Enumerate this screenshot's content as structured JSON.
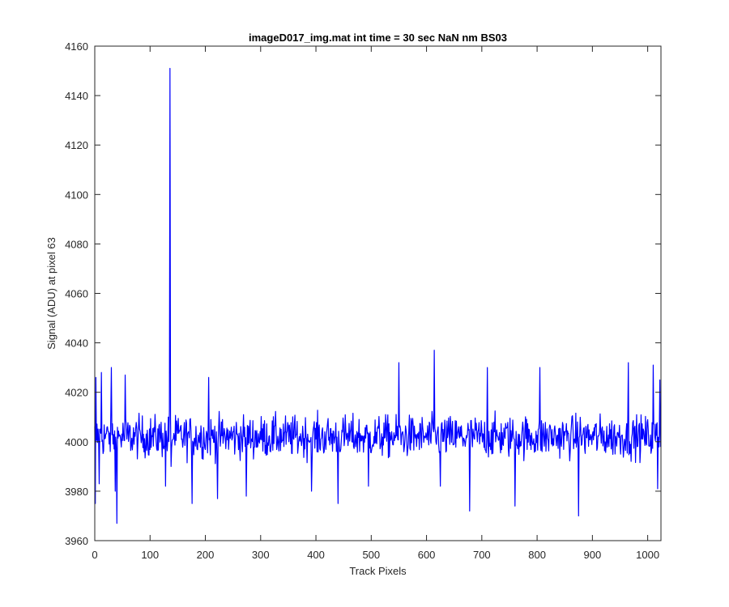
{
  "chart_data": {
    "type": "line",
    "title": "imageD017_img.mat int time = 30 sec  NaN nm BS03",
    "xlabel": "Track Pixels",
    "ylabel": "Signal (ADU) at pixel 63",
    "xlim": [
      0,
      1024
    ],
    "ylim": [
      3960,
      4160
    ],
    "xticks": [
      0,
      100,
      200,
      300,
      400,
      500,
      600,
      700,
      800,
      900,
      1000
    ],
    "yticks": [
      3960,
      3980,
      4000,
      4020,
      4040,
      4060,
      4080,
      4100,
      4120,
      4140,
      4160
    ],
    "grid": false,
    "legend": "none",
    "series": [
      {
        "color": "#0000ff",
        "noise": {
          "n_points": 1024,
          "mean": 4002,
          "spread": 9
        },
        "features": [
          {
            "x": 1,
            "y": 3975
          },
          {
            "x": 2,
            "y": 4026
          },
          {
            "x": 8,
            "y": 3983
          },
          {
            "x": 12,
            "y": 4028
          },
          {
            "x": 30,
            "y": 4030
          },
          {
            "x": 37,
            "y": 3980
          },
          {
            "x": 40,
            "y": 3967
          },
          {
            "x": 55,
            "y": 4027
          },
          {
            "x": 128,
            "y": 3982
          },
          {
            "x": 135,
            "y": 4013
          },
          {
            "x": 136,
            "y": 4151
          },
          {
            "x": 137,
            "y": 4010
          },
          {
            "x": 138,
            "y": 3990
          },
          {
            "x": 176,
            "y": 3975
          },
          {
            "x": 206,
            "y": 4026
          },
          {
            "x": 222,
            "y": 3977
          },
          {
            "x": 274,
            "y": 3978
          },
          {
            "x": 392,
            "y": 3980
          },
          {
            "x": 440,
            "y": 3975
          },
          {
            "x": 495,
            "y": 3982
          },
          {
            "x": 550,
            "y": 4032
          },
          {
            "x": 614,
            "y": 4037
          },
          {
            "x": 625,
            "y": 3982
          },
          {
            "x": 678,
            "y": 3972
          },
          {
            "x": 710,
            "y": 4030
          },
          {
            "x": 760,
            "y": 3974
          },
          {
            "x": 805,
            "y": 4030
          },
          {
            "x": 875,
            "y": 3970
          },
          {
            "x": 965,
            "y": 4032
          },
          {
            "x": 1010,
            "y": 4031
          },
          {
            "x": 1018,
            "y": 3981
          },
          {
            "x": 1022,
            "y": 4025
          }
        ]
      }
    ]
  }
}
